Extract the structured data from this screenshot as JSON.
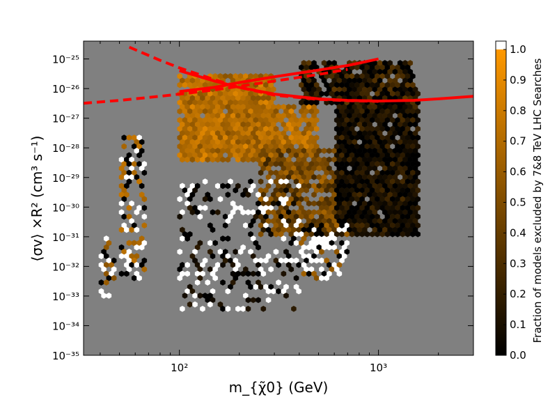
{
  "chart_data": {
    "type": "heatmap",
    "subtype": "hexbin",
    "title": "",
    "xlabel": "m_{χ̃0} (GeV)",
    "ylabel": "⟨σv⟩ ×R²  (cm³  s⁻¹)",
    "x_scale": "log",
    "y_scale": "log",
    "xlim": [
      33,
      3000
    ],
    "ylim": [
      1e-35,
      4e-25
    ],
    "x_ticks": [
      {
        "value": 100,
        "label": "10²"
      },
      {
        "value": 1000,
        "label": "10³"
      }
    ],
    "y_ticks": [
      {
        "value": 1e-35,
        "label": "10⁻³⁵"
      },
      {
        "value": 1e-34,
        "label": "10⁻³⁴"
      },
      {
        "value": 1e-33,
        "label": "10⁻³³"
      },
      {
        "value": 1e-32,
        "label": "10⁻³²"
      },
      {
        "value": 1e-31,
        "label": "10⁻³¹"
      },
      {
        "value": 1e-30,
        "label": "10⁻³⁰"
      },
      {
        "value": 1e-29,
        "label": "10⁻²⁹"
      },
      {
        "value": 1e-28,
        "label": "10⁻²⁸"
      },
      {
        "value": 1e-27,
        "label": "10⁻²⁷"
      },
      {
        "value": 1e-26,
        "label": "10⁻²⁶"
      },
      {
        "value": 1e-25,
        "label": "10⁻²⁵"
      }
    ],
    "background_color": "#808080",
    "colorbar": {
      "label": "Fraction of models excluded by 7&8 TeV LHC Searches",
      "range": [
        0.0,
        1.0
      ],
      "ticks": [
        {
          "value": 0.0,
          "label": "0.0"
        },
        {
          "value": 0.1,
          "label": "0.1"
        },
        {
          "value": 0.2,
          "label": "0.2"
        },
        {
          "value": 0.3,
          "label": "0.3"
        },
        {
          "value": 0.4,
          "label": "0.4"
        },
        {
          "value": 0.5,
          "label": "0.5"
        },
        {
          "value": 0.6,
          "label": "0.6"
        },
        {
          "value": 0.7,
          "label": "0.7"
        },
        {
          "value": 0.8,
          "label": "0.8"
        },
        {
          "value": 0.9,
          "label": "0.9"
        },
        {
          "value": 1.0,
          "label": "1.0"
        }
      ],
      "colormap": [
        "#000000",
        "#ff9900"
      ]
    },
    "regions": [
      {
        "x_min": 40,
        "x_max": 48,
        "y_min": 1e-33,
        "y_max": 1e-31,
        "fraction_mix": [
          0.0,
          1.0,
          0.6
        ],
        "density": 0.5
      },
      {
        "x_min": 50,
        "x_max": 68,
        "y_min": 3e-33,
        "y_max": 3e-28,
        "fraction_mix": [
          1.0,
          0.0,
          0.7
        ],
        "density": 0.55
      },
      {
        "x_min": 100,
        "x_max": 300,
        "y_min": 3e-29,
        "y_max": 3e-26,
        "fraction_mix": [
          0.7,
          0.8,
          0.6
        ],
        "density": 0.95
      },
      {
        "x_min": 150,
        "x_max": 500,
        "y_min": 1e-28,
        "y_max": 3e-27,
        "fraction_mix": [
          0.6,
          0.8,
          0.7
        ],
        "density": 0.9
      },
      {
        "x_min": 250,
        "x_max": 700,
        "y_min": 1e-31,
        "y_max": 1e-28,
        "fraction_mix": [
          0.4,
          0.3,
          0.6,
          0.5
        ],
        "density": 0.8
      },
      {
        "x_min": 600,
        "x_max": 1600,
        "y_min": 1e-31,
        "y_max": 1e-26,
        "fraction_mix": [
          0.0,
          0.05,
          0.1,
          0.2
        ],
        "density": 0.95
      },
      {
        "x_min": 400,
        "x_max": 1500,
        "y_min": 3e-27,
        "y_max": 1e-25,
        "fraction_mix": [
          0.0,
          0.1,
          0.3
        ],
        "density": 0.85
      },
      {
        "x_min": 100,
        "x_max": 400,
        "y_min": 3e-34,
        "y_max": 1e-29,
        "fraction_mix": [
          1.0,
          0.0,
          1.0,
          0.1
        ],
        "density": 0.3
      },
      {
        "x_min": 400,
        "x_max": 700,
        "y_min": 3e-33,
        "y_max": 3e-31,
        "fraction_mix": [
          1.0,
          1.0,
          0.0,
          0.6
        ],
        "density": 0.6
      }
    ],
    "series": [
      {
        "style": "solid",
        "color": "#ff0000",
        "x": [
          100,
          150,
          200,
          300,
          500,
          700,
          1000
        ],
        "y": [
          8e-27,
          1.1e-26,
          1.6e-26,
          2.5e-26,
          4.2e-26,
          6e-26,
          1e-25
        ]
      },
      {
        "style": "solid",
        "color": "#ff0000",
        "x": [
          100,
          150,
          200,
          300,
          500,
          700,
          1000,
          1500,
          2000,
          3000
        ],
        "y": [
          4e-26,
          1.8e-26,
          1.1e-26,
          6.5e-27,
          4.5e-27,
          4e-27,
          3.8e-27,
          4e-27,
          4.5e-27,
          5.5e-27
        ]
      },
      {
        "style": "dashed",
        "color": "#ff0000",
        "x": [
          56,
          80,
          100,
          150,
          200,
          300,
          500,
          700,
          1000
        ],
        "y": [
          2.5e-25,
          9e-26,
          5e-26,
          2e-26,
          1.1e-26,
          6e-27,
          4.3e-27,
          3.9e-27,
          3.7e-27
        ]
      },
      {
        "style": "dashed",
        "color": "#ff0000",
        "x": [
          33,
          50,
          80,
          100,
          150,
          200,
          300,
          500,
          700
        ],
        "y": [
          3.2e-27,
          4e-27,
          5.5e-27,
          6.5e-27,
          9e-27,
          1.2e-26,
          1.8e-26,
          3e-26,
          4.5e-26
        ]
      }
    ]
  }
}
